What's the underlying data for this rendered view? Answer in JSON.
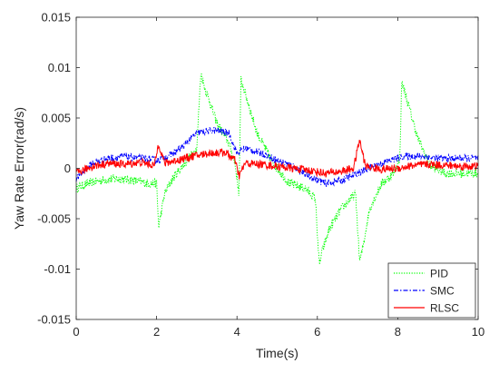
{
  "chart_data": {
    "type": "line",
    "title": "",
    "xlabel": "Time(s)",
    "ylabel": "Yaw Rate Error(rad/s)",
    "xlim": [
      0,
      10
    ],
    "ylim": [
      -0.015,
      0.015
    ],
    "xticks": [
      "0",
      "2",
      "4",
      "6",
      "8",
      "10"
    ],
    "yticks": [
      "-0.015",
      "-0.01",
      "-0.005",
      "0",
      "0.005",
      "0.01",
      "0.015"
    ],
    "grid": false,
    "legend_position": "bottom-right",
    "series": [
      {
        "name": "PID",
        "color": "#00ff00",
        "style": "dotted",
        "x": [
          0,
          0.3,
          0.6,
          1.0,
          1.4,
          1.8,
          2.0,
          2.05,
          2.2,
          2.4,
          2.7,
          3.0,
          3.1,
          3.2,
          3.5,
          3.8,
          3.95,
          4.05,
          4.1,
          4.2,
          4.5,
          4.9,
          5.3,
          5.7,
          5.95,
          6.05,
          6.1,
          6.3,
          6.6,
          6.95,
          7.05,
          7.1,
          7.3,
          7.6,
          7.9,
          8.05,
          8.1,
          8.2,
          8.5,
          8.8,
          9.2,
          9.6,
          10
        ],
        "y": [
          -0.002,
          -0.0015,
          -0.0012,
          -0.001,
          -0.0012,
          -0.0015,
          -0.0015,
          -0.0058,
          -0.0025,
          -0.001,
          0.0005,
          0.002,
          0.0095,
          0.008,
          0.0045,
          0.0025,
          0.0005,
          -0.0025,
          0.0088,
          0.0075,
          0.0035,
          0.0005,
          -0.0015,
          -0.002,
          -0.003,
          -0.0098,
          -0.0085,
          -0.006,
          -0.004,
          -0.0025,
          -0.0092,
          -0.0085,
          -0.004,
          -0.0015,
          -0.0005,
          0.001,
          0.0086,
          0.0072,
          0.003,
          0.0003,
          -0.0005,
          -0.0005,
          -0.0005
        ]
      },
      {
        "name": "SMC",
        "color": "#0000ff",
        "style": "dash-dot",
        "x": [
          0,
          0.4,
          0.8,
          1.2,
          1.6,
          2.0,
          2.3,
          2.6,
          3.0,
          3.4,
          3.8,
          4.0,
          4.2,
          4.6,
          5.0,
          5.4,
          5.8,
          6.2,
          6.6,
          7.0,
          7.4,
          7.8,
          8.2,
          8.6,
          9.0,
          9.4,
          10
        ],
        "y": [
          -0.001,
          0.0005,
          0.001,
          0.0012,
          0.001,
          0.0008,
          0.0012,
          0.002,
          0.0035,
          0.0038,
          0.0035,
          0.0015,
          0.002,
          0.0015,
          0.0008,
          0.0002,
          -0.0008,
          -0.0015,
          -0.0012,
          -0.0005,
          0.0002,
          0.0008,
          0.0012,
          0.0012,
          0.001,
          0.001,
          0.001
        ]
      },
      {
        "name": "RLSC",
        "color": "#ff0000",
        "style": "solid",
        "x": [
          0,
          0.4,
          0.8,
          1.2,
          1.6,
          1.95,
          2.05,
          2.2,
          2.5,
          2.9,
          3.3,
          3.7,
          3.95,
          4.05,
          4.2,
          4.6,
          5.0,
          5.4,
          5.8,
          6.2,
          6.6,
          6.9,
          7.05,
          7.2,
          7.6,
          8.0,
          8.4,
          8.8,
          9.2,
          9.6,
          10
        ],
        "y": [
          -0.0005,
          0.0002,
          0.0005,
          0.0004,
          0.0006,
          0.0003,
          0.0025,
          0.0005,
          0.0008,
          0.0012,
          0.0015,
          0.0016,
          0.0008,
          -0.0008,
          0.0005,
          0.0004,
          0.0002,
          0.0,
          -0.0002,
          -0.0005,
          -0.0003,
          0.0,
          0.0028,
          0.0002,
          -0.0001,
          0.0,
          0.0003,
          0.0004,
          0.0003,
          0.0002,
          0.0002
        ]
      }
    ]
  }
}
